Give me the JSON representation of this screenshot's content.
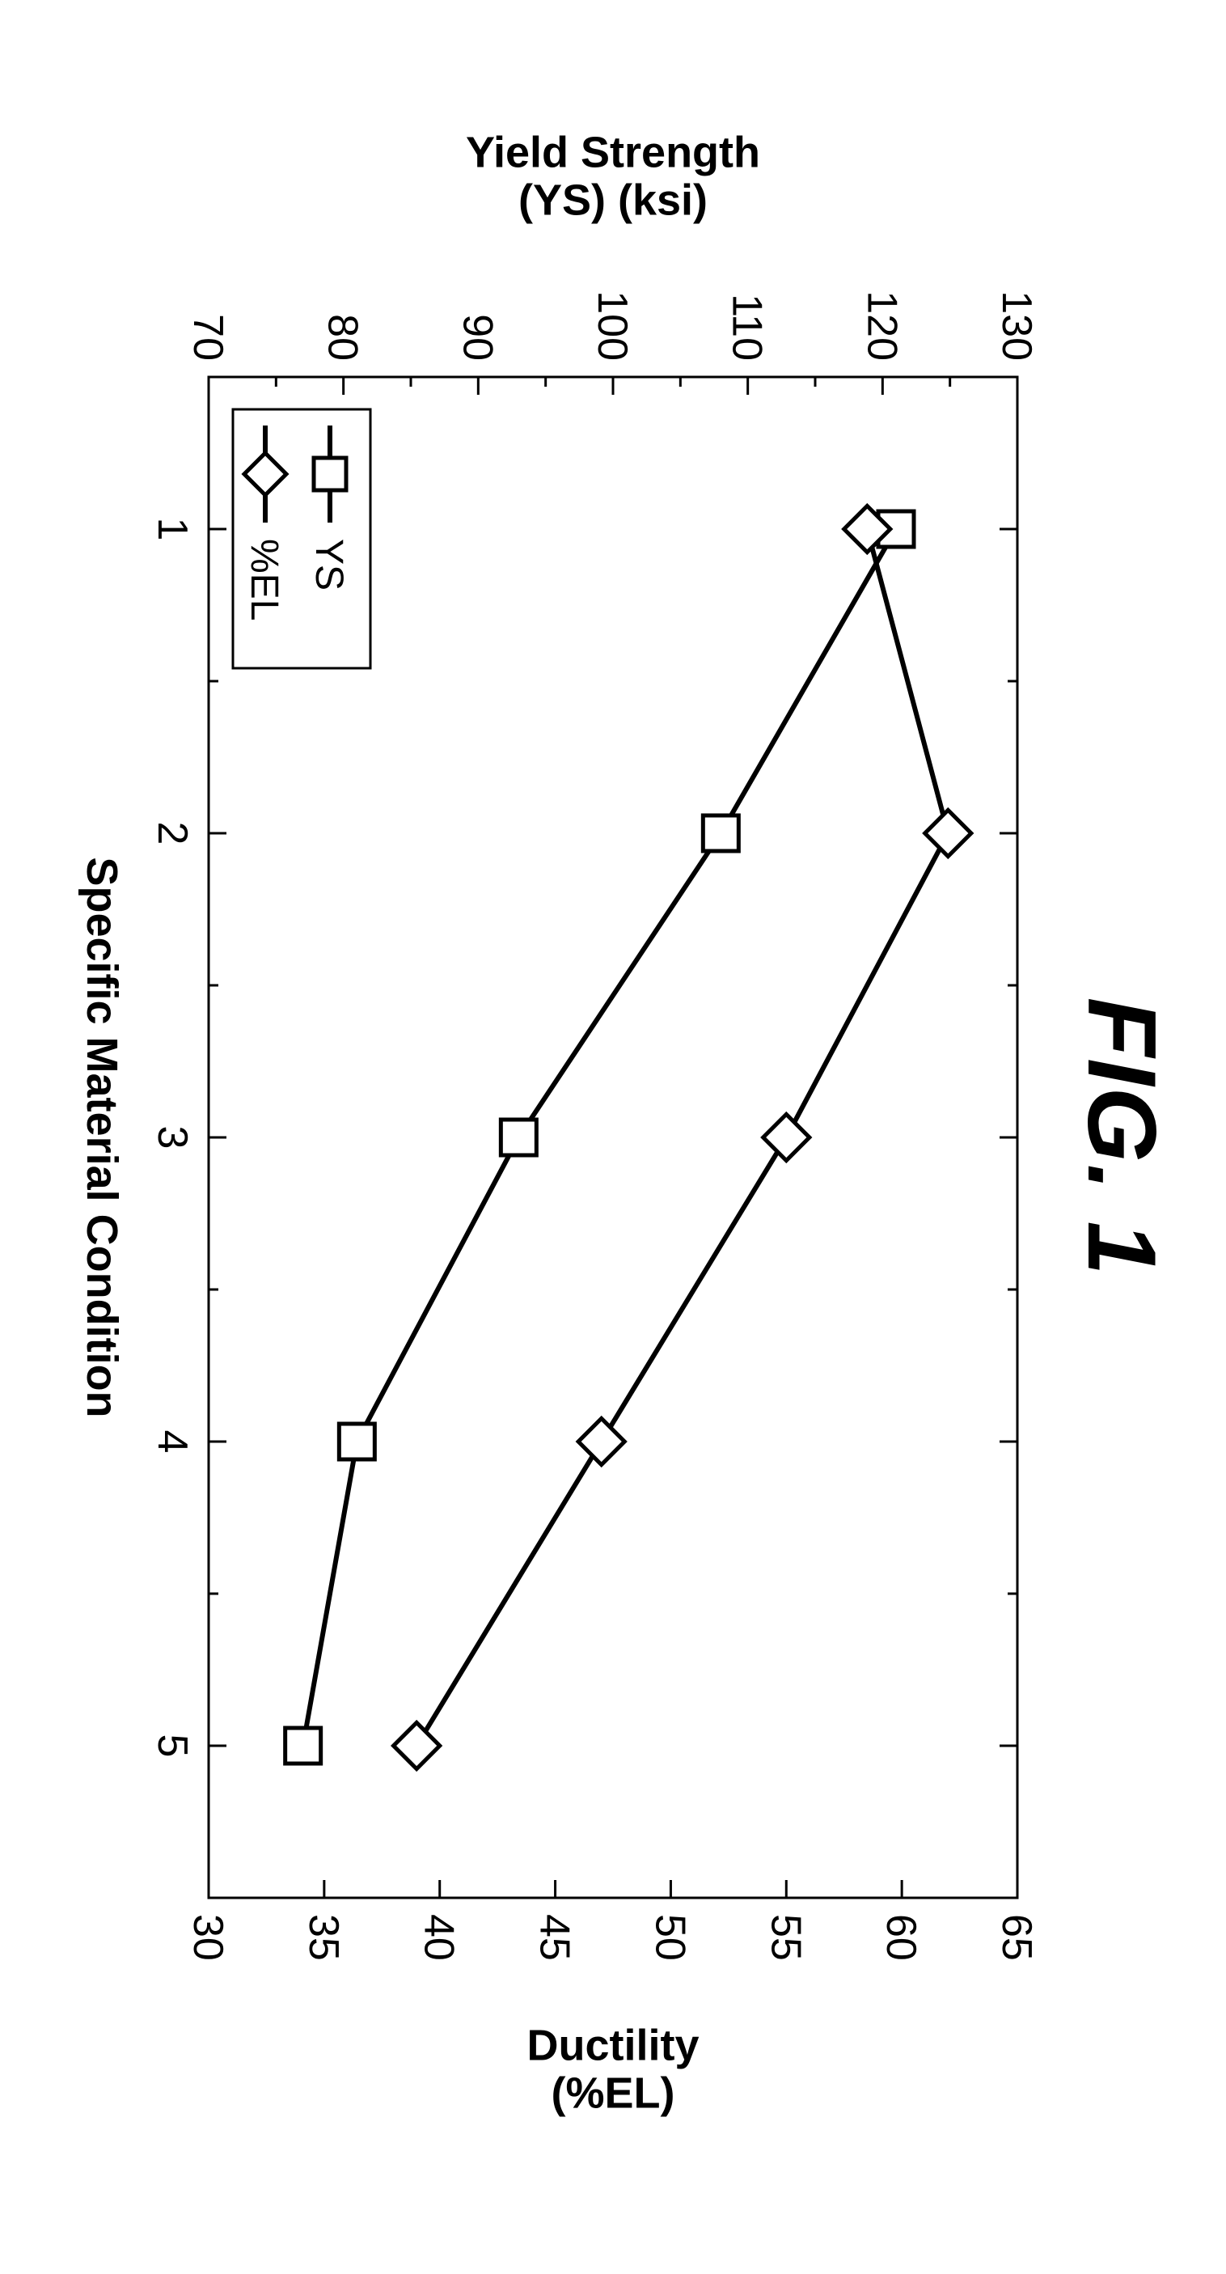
{
  "figure": {
    "title": "FIG. 1",
    "title_fontsize": 120,
    "title_style": "italic bold",
    "rotated_deg": 90,
    "chart": {
      "type": "line",
      "background_color": "#ffffff",
      "plot_border_color": "#000000",
      "plot_border_width": 3,
      "xlabel": "Specific Material Condition",
      "ylabel_left": "Yield Strength\n(YS) (ksi)",
      "ylabel_right": "Ductility\n(%EL)",
      "axis_label_fontsize": 54,
      "tick_fontsize": 52,
      "tick_len_major": 22,
      "tick_len_minor": 12,
      "tick_width": 3,
      "x": {
        "lim": [
          0.5,
          5.5
        ],
        "ticks": [
          1,
          2,
          3,
          4,
          5
        ],
        "minor_between": 1
      },
      "y_left": {
        "lim": [
          70,
          130
        ],
        "ticks": [
          70,
          80,
          90,
          100,
          110,
          120,
          130
        ],
        "minor_between": 1
      },
      "y_right": {
        "lim": [
          30,
          65
        ],
        "ticks": [
          30,
          35,
          40,
          45,
          50,
          55,
          60,
          65
        ],
        "minor_between": 0
      },
      "series": [
        {
          "name": "YS",
          "marker": "square",
          "axis": "left",
          "color": "#000000",
          "line_width": 6,
          "marker_size": 22,
          "marker_fill": "#ffffff",
          "marker_stroke": "#000000",
          "marker_stroke_width": 5,
          "x": [
            1,
            2,
            3,
            4,
            5
          ],
          "y": [
            121,
            108,
            93,
            81,
            77
          ]
        },
        {
          "name": "%EL",
          "marker": "diamond",
          "axis": "right",
          "color": "#000000",
          "line_width": 6,
          "marker_size": 22,
          "marker_fill": "#ffffff",
          "marker_stroke": "#000000",
          "marker_stroke_width": 5,
          "x": [
            1,
            2,
            3,
            4,
            5
          ],
          "y": [
            58.5,
            62,
            55,
            47,
            39
          ]
        }
      ],
      "legend": {
        "position": "bottom-left-inside",
        "border_color": "#000000",
        "border_width": 3,
        "background": "#ffffff",
        "fontsize": 48,
        "items": [
          {
            "label": "YS",
            "marker": "square"
          },
          {
            "label": "%EL",
            "marker": "diamond"
          }
        ]
      }
    }
  }
}
